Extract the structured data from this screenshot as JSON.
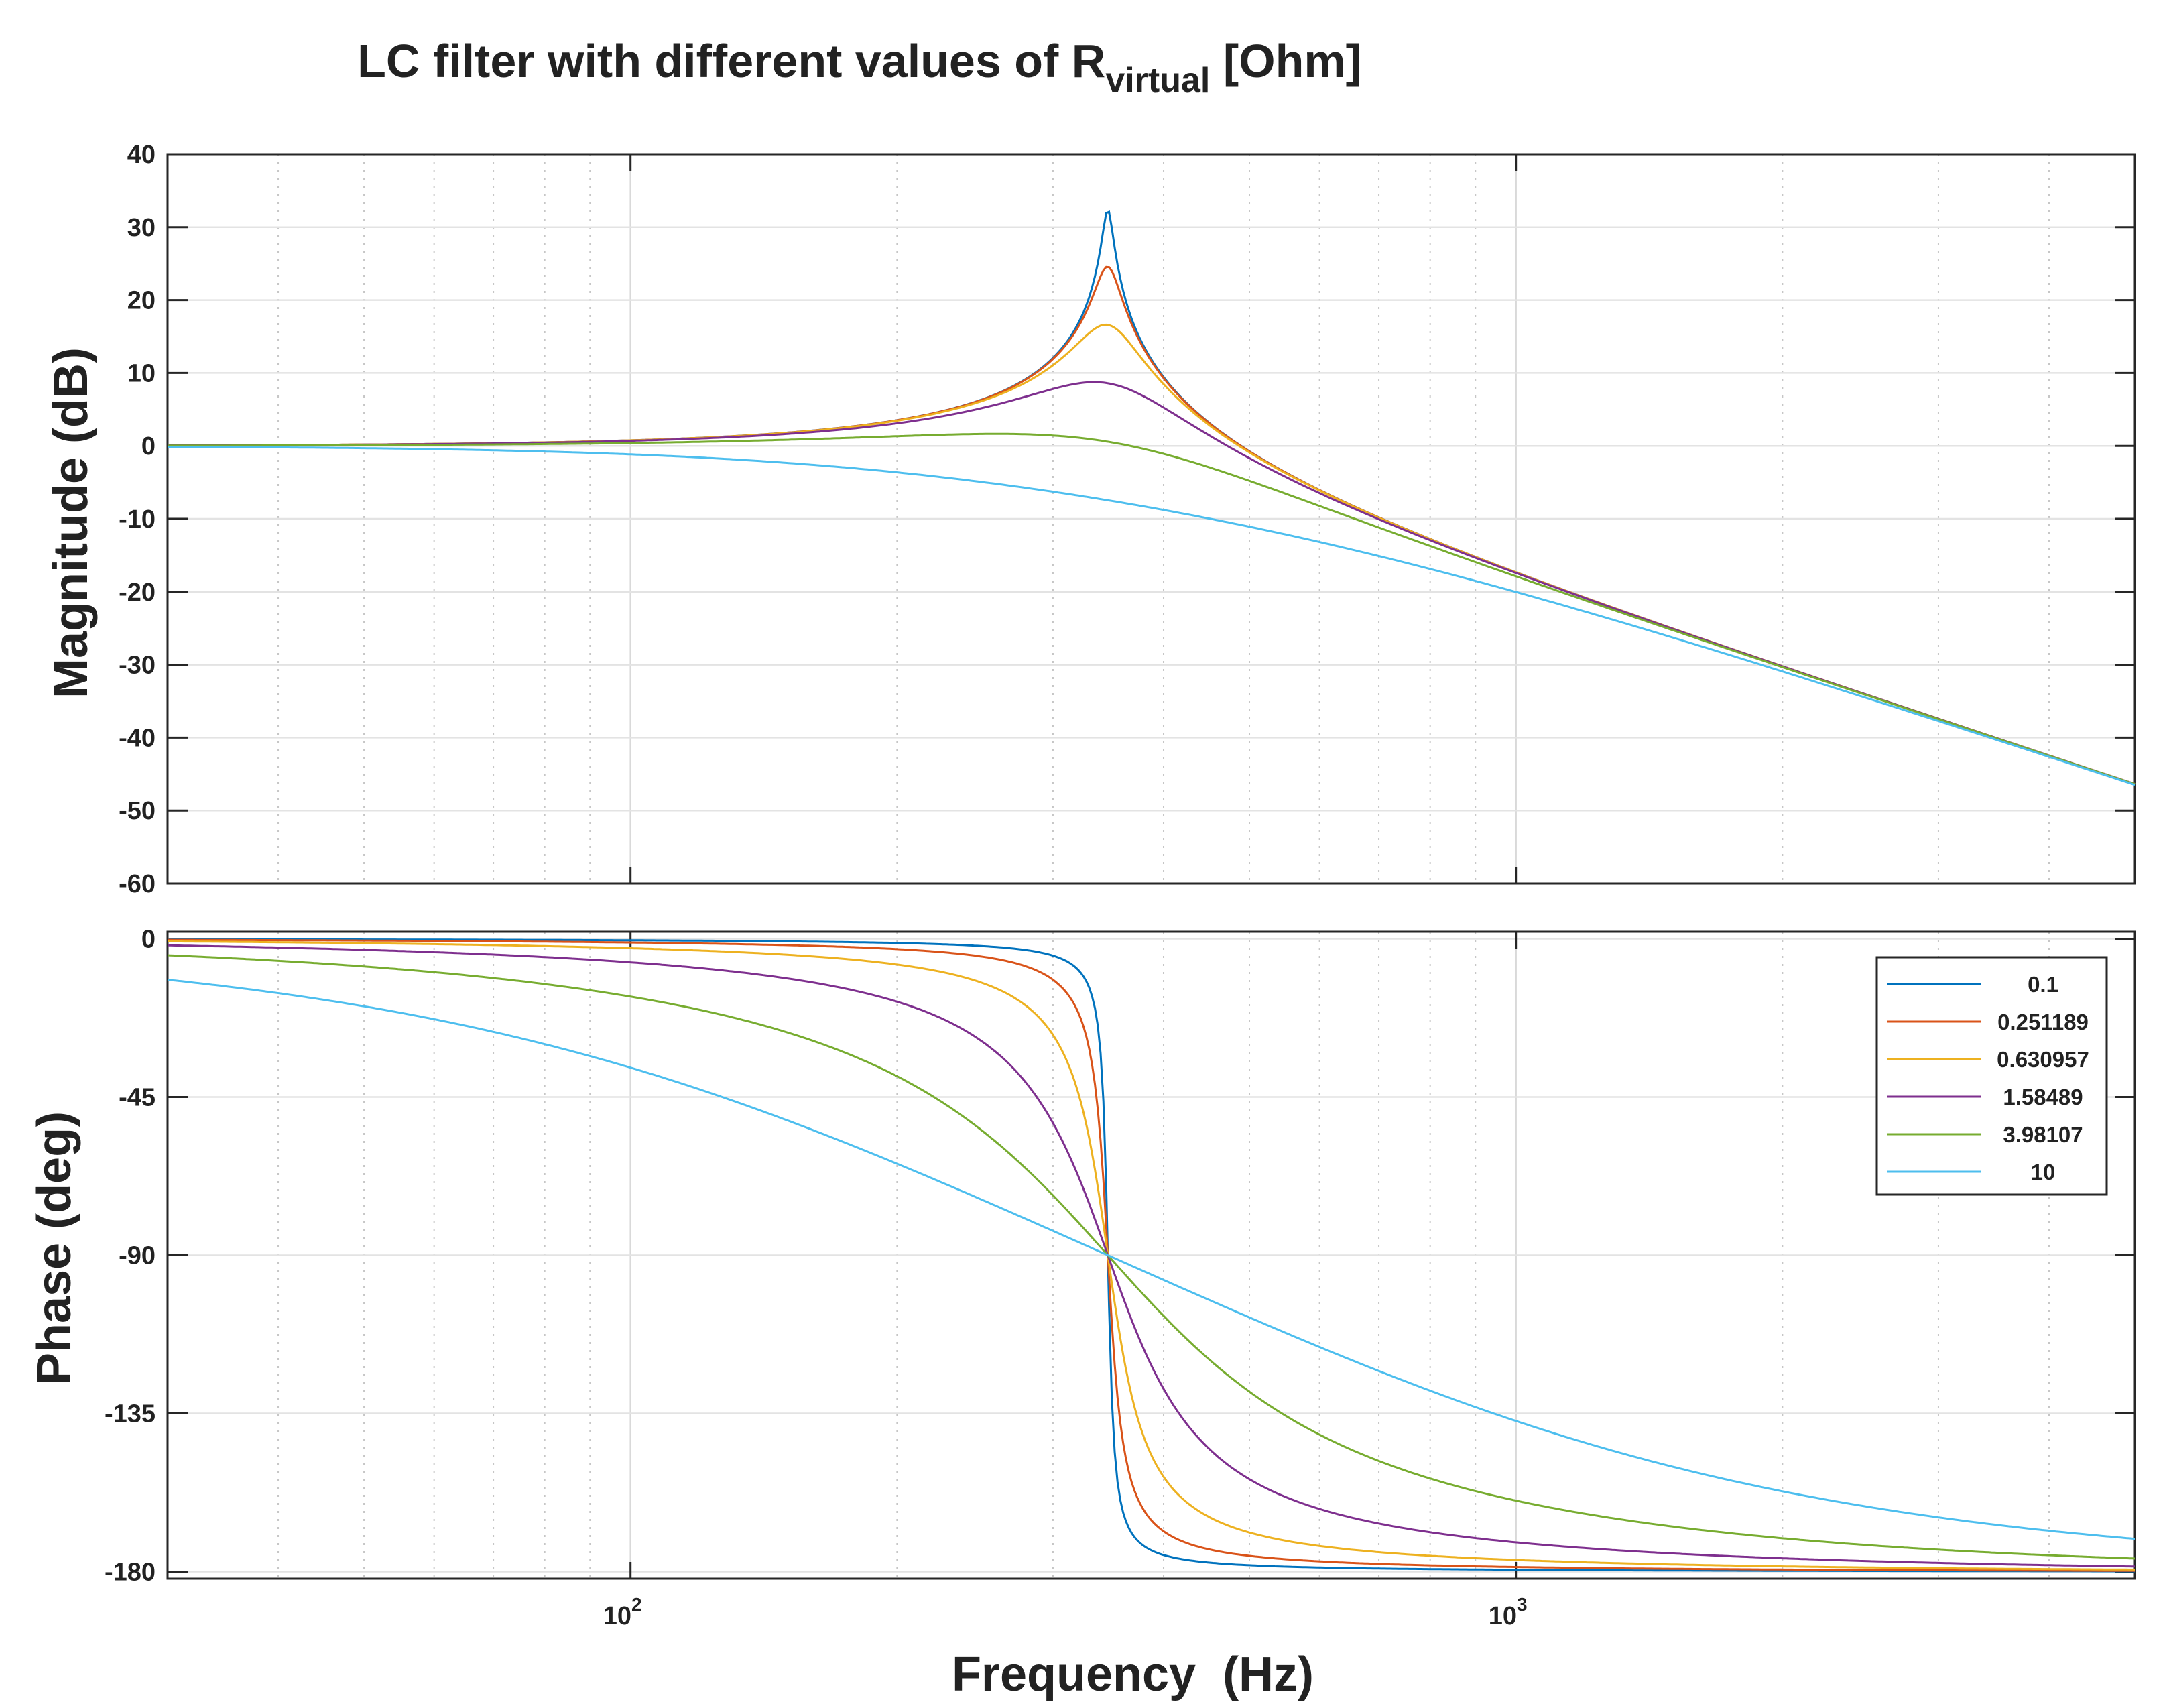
{
  "chart_data": {
    "type": "line",
    "title": "LC filter with different values of R",
    "title_subscript": "virtual",
    "title_suffix": " [Ohm]",
    "xlabel": "Frequency  (Hz)",
    "xscale": "log",
    "xlim": [
      30,
      5000
    ],
    "x_ticks": [
      {
        "value": 100,
        "base": "10",
        "exp": "2"
      },
      {
        "value": 1000,
        "base": "10",
        "exp": "3"
      }
    ],
    "resonance_hz": 346,
    "legend_position": "top-right (phase panel)",
    "grid": true,
    "magnitude": {
      "ylabel": "Magnitude (dB)",
      "ylim": [
        -60,
        40
      ],
      "yticks": [
        40,
        30,
        20,
        10,
        0,
        -10,
        -20,
        -30,
        -40,
        -50,
        -60
      ]
    },
    "phase": {
      "ylabel": "Phase (deg)",
      "ylim": [
        -182,
        2
      ],
      "yticks": [
        0,
        -45,
        -90,
        -135,
        -180
      ]
    },
    "series": [
      {
        "name": "0.1",
        "color": "#0072BD",
        "zeta": 0.012,
        "magnitude_db": [
          [
            30,
            0.0
          ],
          [
            100,
            0.8
          ],
          [
            200,
            3.4
          ],
          [
            300,
            12.0
          ],
          [
            346,
            32.5
          ],
          [
            400,
            9.0
          ],
          [
            600,
            -10.0
          ],
          [
            1000,
            -18.0
          ],
          [
            5000,
            -46.2
          ]
        ],
        "phase_deg": [
          [
            30,
            -0.1
          ],
          [
            100,
            -0.4
          ],
          [
            200,
            -1.0
          ],
          [
            300,
            -4.0
          ],
          [
            346,
            -90
          ],
          [
            400,
            -174.5
          ],
          [
            1000,
            -179.5
          ],
          [
            5000,
            -179.9
          ]
        ]
      },
      {
        "name": "0.251189",
        "color": "#D95319",
        "zeta": 0.0295,
        "magnitude_db": [
          [
            30,
            0.0
          ],
          [
            100,
            0.8
          ],
          [
            200,
            3.4
          ],
          [
            300,
            11.8
          ],
          [
            346,
            24.6
          ],
          [
            400,
            8.9
          ],
          [
            600,
            -10.0
          ],
          [
            1000,
            -18.0
          ],
          [
            5000,
            -46.2
          ]
        ],
        "phase_deg": [
          [
            30,
            -0.3
          ],
          [
            100,
            -1.0
          ],
          [
            200,
            -2.6
          ],
          [
            300,
            -11.0
          ],
          [
            346,
            -90
          ],
          [
            400,
            -167.0
          ],
          [
            1000,
            -178.5
          ],
          [
            5000,
            -179.7
          ]
        ]
      },
      {
        "name": "0.630957",
        "color": "#EDB120",
        "zeta": 0.074,
        "magnitude_db": [
          [
            30,
            0.0
          ],
          [
            100,
            0.8
          ],
          [
            200,
            3.3
          ],
          [
            300,
            10.9
          ],
          [
            346,
            16.6
          ],
          [
            400,
            8.4
          ],
          [
            600,
            -10.1
          ],
          [
            1000,
            -18.0
          ],
          [
            5000,
            -46.2
          ]
        ],
        "phase_deg": [
          [
            30,
            -0.7
          ],
          [
            100,
            -2.4
          ],
          [
            200,
            -6.6
          ],
          [
            300,
            -26.0
          ],
          [
            346,
            -90
          ],
          [
            400,
            -153.0
          ],
          [
            1000,
            -177.0
          ],
          [
            5000,
            -179.3
          ]
        ]
      },
      {
        "name": "1.58489",
        "color": "#7E2F8E",
        "zeta": 0.186,
        "magnitude_db": [
          [
            30,
            0.0
          ],
          [
            100,
            0.7
          ],
          [
            200,
            2.9
          ],
          [
            300,
            7.9
          ],
          [
            346,
            8.6
          ],
          [
            400,
            5.6
          ],
          [
            600,
            -10.4
          ],
          [
            1000,
            -18.1
          ],
          [
            5000,
            -46.2
          ]
        ],
        "phase_deg": [
          [
            30,
            -1.8
          ],
          [
            100,
            -6.2
          ],
          [
            200,
            -19.0
          ],
          [
            300,
            -53.0
          ],
          [
            346,
            -90
          ],
          [
            400,
            -128.0
          ],
          [
            1000,
            -171.5
          ],
          [
            5000,
            -178.3
          ]
        ]
      },
      {
        "name": "3.98107",
        "color": "#77AC30",
        "zeta": 0.468,
        "magnitude_db": [
          [
            30,
            0.0
          ],
          [
            100,
            0.4
          ],
          [
            200,
            1.2
          ],
          [
            300,
            1.4
          ],
          [
            346,
            0.6
          ],
          [
            400,
            -0.9
          ],
          [
            600,
            -7.8
          ],
          [
            1000,
            -18.0
          ],
          [
            5000,
            -46.2
          ]
        ],
        "phase_deg": [
          [
            30,
            -4.6
          ],
          [
            100,
            -15.5
          ],
          [
            200,
            -40.0
          ],
          [
            300,
            -72.0
          ],
          [
            346,
            -90
          ],
          [
            400,
            -108.0
          ],
          [
            1000,
            -161.0
          ],
          [
            5000,
            -175.8
          ]
        ]
      },
      {
        "name": "10",
        "color": "#4DBEEE",
        "zeta": 1.18,
        "magnitude_db": [
          [
            30,
            -0.1
          ],
          [
            100,
            -1.2
          ],
          [
            200,
            -4.0
          ],
          [
            300,
            -6.5
          ],
          [
            346,
            -7.4
          ],
          [
            400,
            -8.3
          ],
          [
            600,
            -12.5
          ],
          [
            1000,
            -19.5
          ],
          [
            5000,
            -46.2
          ]
        ],
        "phase_deg": [
          [
            30,
            -11.6
          ],
          [
            100,
            -37.0
          ],
          [
            200,
            -63.0
          ],
          [
            300,
            -82.0
          ],
          [
            346,
            -90
          ],
          [
            400,
            -98.0
          ],
          [
            1000,
            -137.0
          ],
          [
            5000,
            -168.0
          ]
        ]
      }
    ]
  }
}
